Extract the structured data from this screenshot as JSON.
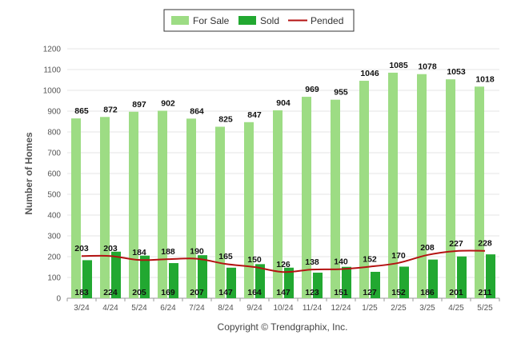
{
  "chart_data": {
    "type": "bar",
    "ylabel": "Number of Homes",
    "ylim": [
      0,
      1200
    ],
    "yticks": [
      "0",
      "100",
      "200",
      "300",
      "400",
      "500",
      "600",
      "700",
      "800",
      "900",
      "1000",
      "1100",
      "1200"
    ],
    "grid": true,
    "legend_position": "top-center",
    "categories": [
      "3/24",
      "4/24",
      "5/24",
      "6/24",
      "7/24",
      "8/24",
      "9/24",
      "10/24",
      "11/24",
      "12/24",
      "1/25",
      "2/25",
      "3/25",
      "4/25",
      "5/25"
    ],
    "series": [
      {
        "name": "For Sale",
        "kind": "bar",
        "color": "#9ddc84",
        "values": [
          865,
          872,
          897,
          902,
          864,
          825,
          847,
          904,
          969,
          955,
          1046,
          1085,
          1078,
          1053,
          1018
        ]
      },
      {
        "name": "Sold",
        "kind": "bar",
        "color": "#22a831",
        "values": [
          183,
          224,
          205,
          169,
          207,
          147,
          164,
          147,
          123,
          151,
          127,
          152,
          186,
          201,
          211
        ]
      },
      {
        "name": "Pended",
        "kind": "line",
        "color": "#b41212",
        "values": [
          203,
          203,
          184,
          188,
          190,
          165,
          150,
          126,
          138,
          140,
          152,
          170,
          208,
          227,
          228
        ]
      }
    ],
    "credit": "Copyright © Trendgraphix, Inc."
  }
}
